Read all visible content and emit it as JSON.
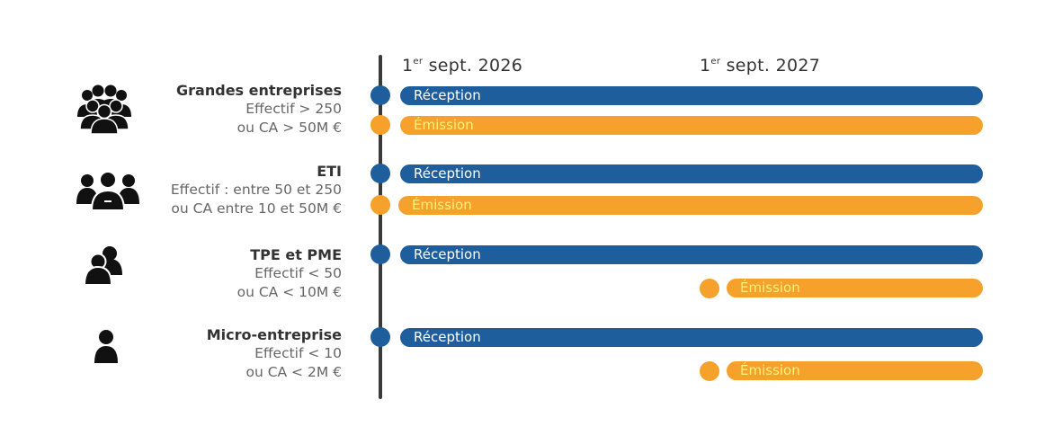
{
  "timeline": {
    "dates": [
      {
        "ordinal": "1",
        "suffix": "er",
        "text": "sept. 2026"
      },
      {
        "ordinal": "1",
        "suffix": "er",
        "text": "sept. 2027"
      }
    ]
  },
  "categories": [
    {
      "title": "Grandes entreprises",
      "lines": [
        "Effectif > 250",
        "ou CA > 50M €"
      ],
      "icon": "large-group-people-icon",
      "reception_label": "Réception",
      "emission_label": "Émission",
      "reception_start": "1er sept. 2026",
      "emission_start": "1er sept. 2026"
    },
    {
      "title": "ETI",
      "lines": [
        "Effectif : entre 50 et 250",
        "ou CA entre 10 et 50M €"
      ],
      "icon": "group-business-people-icon",
      "reception_label": "Réception",
      "emission_label": "Émission",
      "reception_start": "1er sept. 2026",
      "emission_start": "1er sept. 2026"
    },
    {
      "title": "TPE et PME",
      "lines": [
        "Effectif < 50",
        "ou CA < 10M €"
      ],
      "icon": "two-people-icon",
      "reception_label": "Réception",
      "emission_label": "Émission",
      "reception_start": "1er sept. 2026",
      "emission_start": "1er sept. 2027"
    },
    {
      "title": "Micro-entreprise",
      "lines": [
        "Effectif < 10",
        "ou CA < 2M €"
      ],
      "icon": "single-person-icon",
      "reception_label": "Réception",
      "emission_label": "Émission",
      "reception_start": "1er sept. 2026",
      "emission_start": "1er sept. 2027"
    }
  ],
  "colors": {
    "reception": "#1f5e9c",
    "emission": "#f5a12c",
    "emission_text": "#fdf27a",
    "axis": "#3a3a3a"
  }
}
